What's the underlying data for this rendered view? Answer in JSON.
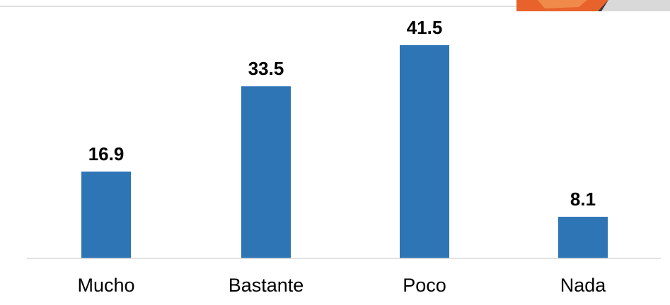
{
  "chart_data": {
    "type": "bar",
    "categories": [
      "Mucho",
      "Bastante",
      "Poco",
      "Nada"
    ],
    "values": [
      16.9,
      33.5,
      41.5,
      8.1
    ],
    "value_labels": [
      "16.9",
      "33.5",
      "41.5",
      "8.1"
    ],
    "title": "",
    "xlabel": "",
    "ylabel": "",
    "ylim": [
      0,
      41.5
    ],
    "grid": false,
    "legend": "none",
    "colors": {
      "bar": "#2E75B6",
      "axis": "#D9D9D9",
      "top_rule": "#BFBFBF",
      "photo_corner": "#E8632B"
    }
  }
}
